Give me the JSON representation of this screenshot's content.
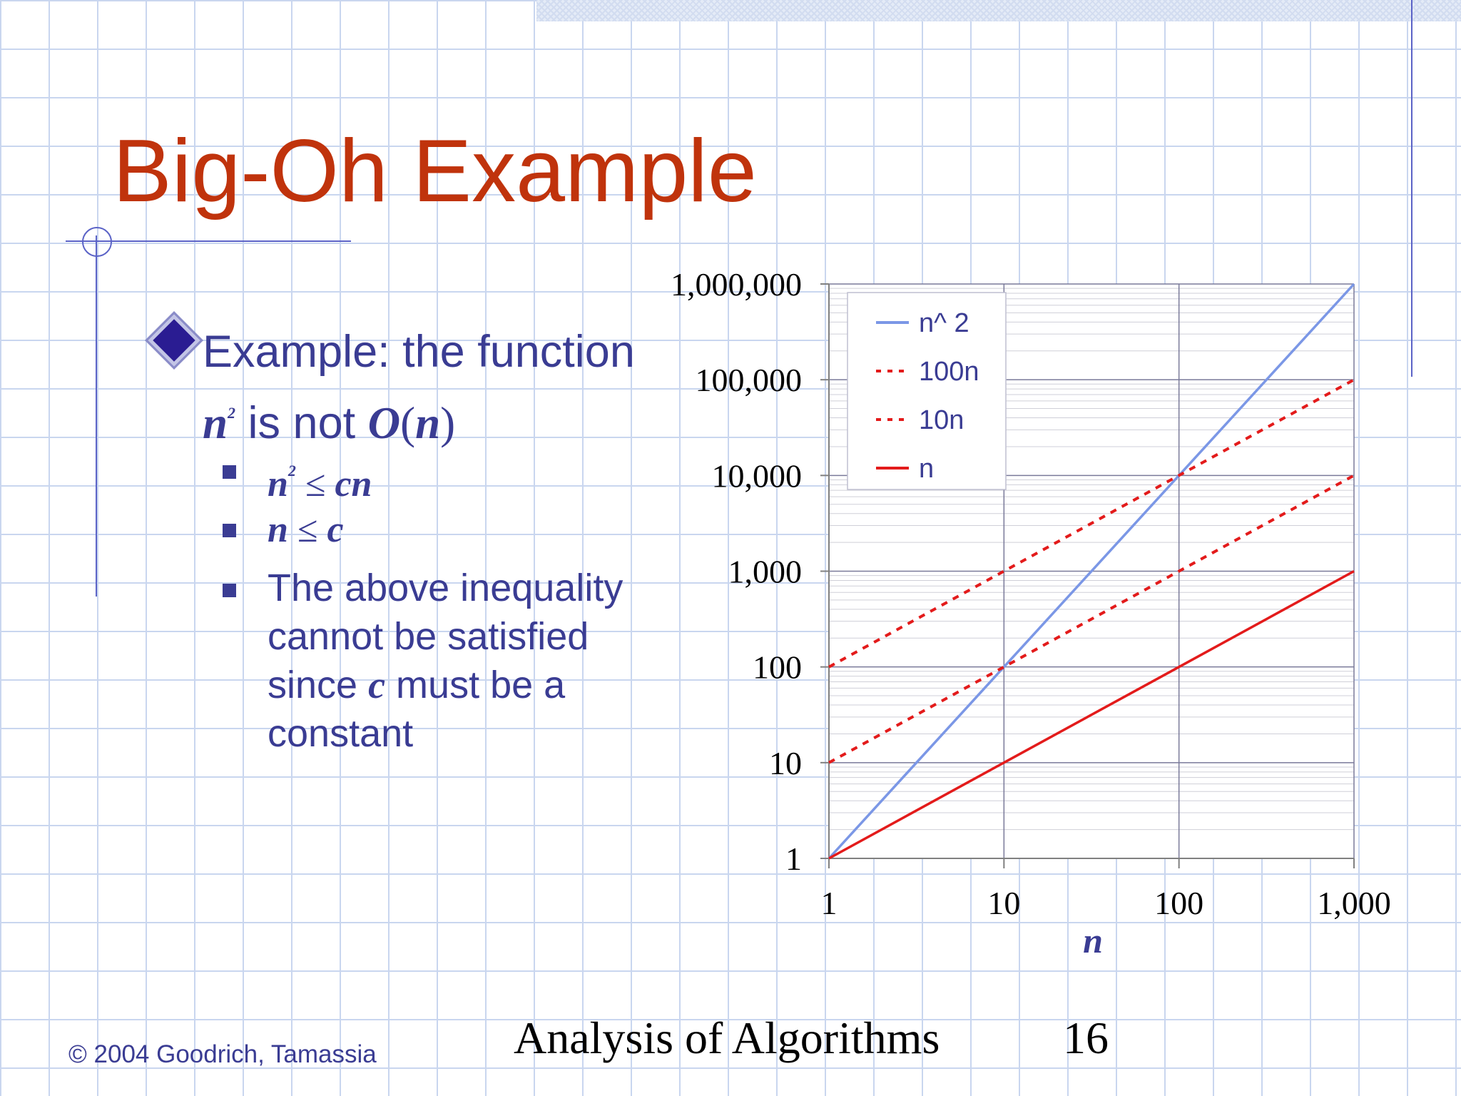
{
  "slide": {
    "title": "Big-Oh Example",
    "bullet": {
      "line1": "Example: the function",
      "line2_var": "n",
      "line2_sup": "2",
      "line2_mid": " is not ",
      "line2_O": "O",
      "line2_paren_open": "(",
      "line2_n": "n",
      "line2_paren_close": ")"
    },
    "sub_bullets": [
      {
        "lhs": "n",
        "sup": "2",
        "op": " ≤ ",
        "rhs": "cn"
      },
      {
        "lhs": "n",
        "op": " ≤ ",
        "rhs": "c"
      },
      {
        "text_before": "The above inequality cannot be satisfied since ",
        "var": "c",
        "text_after": " must be a constant"
      }
    ],
    "footer": {
      "copyright": "© 2004 Goodrich, Tamassia",
      "course": "Analysis of Algorithms",
      "page": "16"
    }
  },
  "chart_data": {
    "type": "line",
    "x_scale": "log",
    "y_scale": "log",
    "xlim": [
      1,
      1000
    ],
    "ylim": [
      1,
      1000000
    ],
    "xlabel": "n",
    "ylabel": "",
    "x_ticks": [
      1,
      10,
      100,
      1000
    ],
    "x_tick_labels": [
      "1",
      "10",
      "100",
      "1,000"
    ],
    "y_ticks": [
      1,
      10,
      100,
      1000,
      10000,
      100000,
      1000000
    ],
    "y_tick_labels": [
      "1",
      "10",
      "100",
      "1,000",
      "10,000",
      "100,000",
      "1,000,000"
    ],
    "grid": true,
    "legend_position": "top-left",
    "x": [
      1,
      10,
      100,
      1000
    ],
    "series": [
      {
        "name": "n^ 2",
        "values": [
          1,
          100,
          10000,
          1000000
        ],
        "color": "#7b97e6",
        "dash": "solid"
      },
      {
        "name": "100n",
        "values": [
          100,
          1000,
          10000,
          100000
        ],
        "color": "#e31b1b",
        "dash": "dashed"
      },
      {
        "name": "10n",
        "values": [
          10,
          100,
          1000,
          10000
        ],
        "color": "#e31b1b",
        "dash": "dashed"
      },
      {
        "name": "n",
        "values": [
          1,
          10,
          100,
          1000
        ],
        "color": "#e31b1b",
        "dash": "solid"
      }
    ]
  }
}
